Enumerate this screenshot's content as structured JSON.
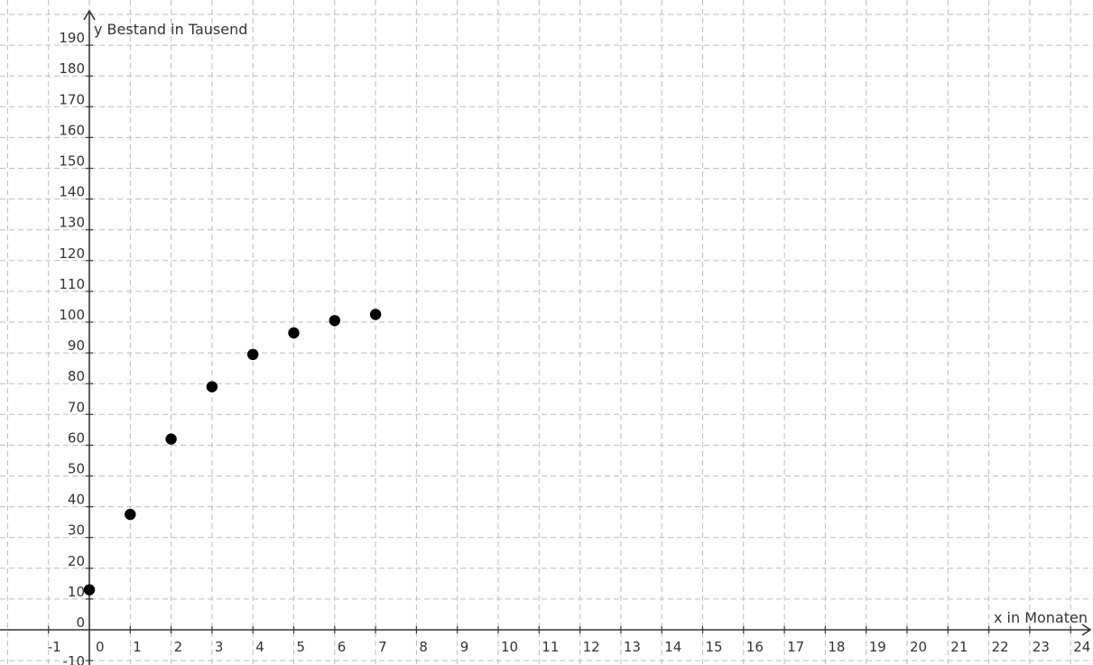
{
  "chart_data": {
    "type": "scatter",
    "xlabel": "x in Monaten",
    "ylabel": "y Bestand in Tausend",
    "xlim": [
      -2,
      24.5
    ],
    "ylim": [
      -10,
      195
    ],
    "x_ticks": [
      -1,
      0,
      1,
      2,
      3,
      4,
      5,
      6,
      7,
      8,
      9,
      10,
      11,
      12,
      13,
      14,
      15,
      16,
      17,
      18,
      19,
      20,
      21,
      22,
      23,
      24
    ],
    "y_ticks": [
      -10,
      0,
      10,
      20,
      30,
      40,
      50,
      60,
      70,
      80,
      90,
      100,
      110,
      120,
      130,
      140,
      150,
      160,
      170,
      180,
      190
    ],
    "grid": true,
    "series": [
      {
        "x": [
          0,
          1,
          2,
          3,
          4,
          5,
          6,
          7
        ],
        "y": [
          13,
          37.5,
          62,
          79,
          89.5,
          96.5,
          100.5,
          102.5
        ],
        "color": "#000000"
      }
    ]
  }
}
